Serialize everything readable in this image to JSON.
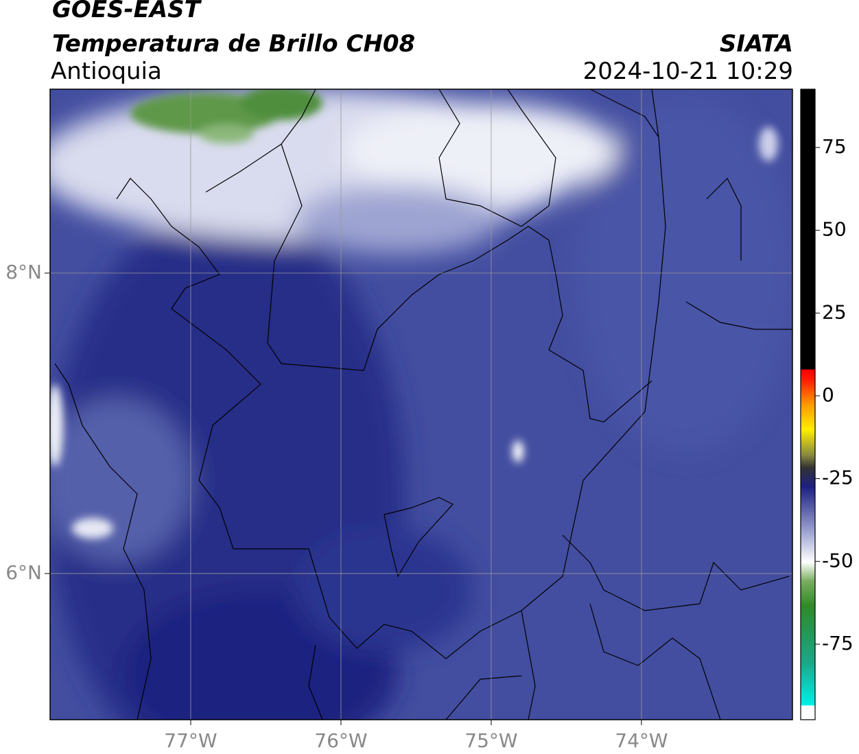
{
  "header": {
    "satellite": "GOES-EAST",
    "product": "Temperatura de Brillo CH08",
    "agency": "SIATA",
    "region": "Antioquia",
    "timestamp": "2024-10-21 10:29"
  },
  "map": {
    "xlim": [
      -77.936,
      -72.995
    ],
    "ylim": [
      5.027,
      9.224
    ],
    "xticks": [
      {
        "value": -77,
        "label": "77°W"
      },
      {
        "value": -76,
        "label": "76°W"
      },
      {
        "value": -75,
        "label": "75°W"
      },
      {
        "value": -74,
        "label": "74°W"
      }
    ],
    "yticks": [
      {
        "value": 6,
        "label": "6°N"
      },
      {
        "value": 8,
        "label": "8°N"
      }
    ],
    "grid": true
  },
  "colorbar": {
    "clim": [
      -97.8,
      92.6
    ],
    "ticks": [
      -75,
      -50,
      -25,
      0,
      25,
      50,
      75
    ]
  }
}
